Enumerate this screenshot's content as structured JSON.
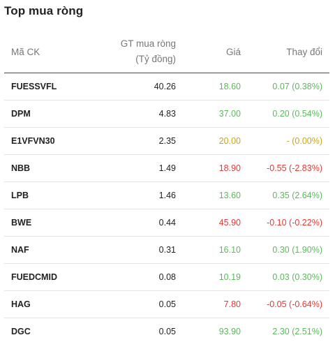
{
  "title": "Top mua ròng",
  "headers": {
    "code": "Mã CK",
    "gt_line1": "GT mua ròng",
    "gt_line2": "(Tỷ đồng)",
    "price": "Giá",
    "change": "Thay đổi"
  },
  "status_colors": {
    "up": "#5cb85c",
    "down": "#e53935",
    "ref": "#c9a512"
  },
  "rows": [
    {
      "code": "FUESSVFL",
      "gt": "40.26",
      "price": "18.60",
      "change": "0.07 (0.38%)",
      "status": "up"
    },
    {
      "code": "DPM",
      "gt": "4.83",
      "price": "37.00",
      "change": "0.20 (0.54%)",
      "status": "up"
    },
    {
      "code": "E1VFVN30",
      "gt": "2.35",
      "price": "20.00",
      "change": "- (0.00%)",
      "status": "ref"
    },
    {
      "code": "NBB",
      "gt": "1.49",
      "price": "18.90",
      "change": "-0.55 (-2.83%)",
      "status": "down"
    },
    {
      "code": "LPB",
      "gt": "1.46",
      "price": "13.60",
      "change": "0.35 (2.64%)",
      "status": "up"
    },
    {
      "code": "BWE",
      "gt": "0.44",
      "price": "45.90",
      "change": "-0.10 (-0.22%)",
      "status": "down"
    },
    {
      "code": "NAF",
      "gt": "0.31",
      "price": "16.10",
      "change": "0.30 (1.90%)",
      "status": "up"
    },
    {
      "code": "FUEDCMID",
      "gt": "0.08",
      "price": "10.19",
      "change": "0.03 (0.30%)",
      "status": "up"
    },
    {
      "code": "HAG",
      "gt": "0.05",
      "price": "7.80",
      "change": "-0.05 (-0.64%)",
      "status": "down"
    },
    {
      "code": "DGC",
      "gt": "0.05",
      "price": "93.90",
      "change": "2.30 (2.51%)",
      "status": "up"
    }
  ]
}
